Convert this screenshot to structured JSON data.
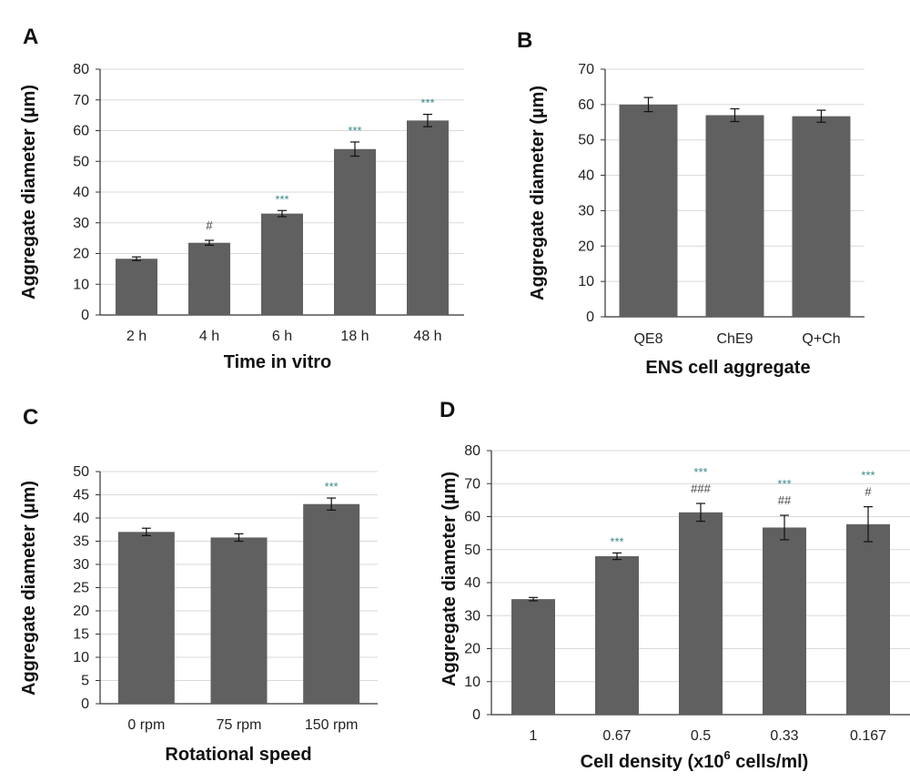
{
  "chart_data": [
    {
      "panel": "A",
      "type": "bar",
      "categories": [
        "2 h",
        "4 h",
        "6 h",
        "18 h",
        "48 h"
      ],
      "values": [
        18.3,
        23.5,
        33.0,
        54.0,
        63.3
      ],
      "errors": [
        0.6,
        0.8,
        1.0,
        2.3,
        2.0
      ],
      "annotations": [
        [],
        [
          "#"
        ],
        [
          "***"
        ],
        [
          "***"
        ],
        [
          "***"
        ]
      ],
      "ylim": [
        0,
        80
      ],
      "yticks": [
        0,
        10,
        20,
        30,
        40,
        50,
        60,
        70,
        80
      ],
      "xlabel": "Time in vitro",
      "ylabel": "Aggregate diameter (µm)",
      "grid": true
    },
    {
      "panel": "B",
      "type": "bar",
      "categories": [
        "QE8",
        "ChE9",
        "Q+Ch"
      ],
      "values": [
        60.0,
        57.0,
        56.7
      ],
      "errors": [
        2.0,
        1.8,
        1.7
      ],
      "annotations": [
        [],
        [],
        []
      ],
      "ylim": [
        0,
        70
      ],
      "yticks": [
        0,
        10,
        20,
        30,
        40,
        50,
        60,
        70
      ],
      "xlabel": "ENS cell aggregate",
      "ylabel": "Aggregate diameter (µm)",
      "grid": true
    },
    {
      "panel": "C",
      "type": "bar",
      "categories": [
        "0 rpm",
        "75 rpm",
        "150 rpm"
      ],
      "values": [
        37.0,
        35.8,
        43.0
      ],
      "errors": [
        0.8,
        0.8,
        1.3
      ],
      "annotations": [
        [],
        [],
        [
          "***"
        ]
      ],
      "ylim": [
        0,
        50
      ],
      "yticks": [
        0,
        5,
        10,
        15,
        20,
        25,
        30,
        35,
        40,
        45,
        50
      ],
      "xlabel": "Rotational speed",
      "ylabel": "Aggregate diameter (µm)",
      "grid": true
    },
    {
      "panel": "D",
      "type": "bar",
      "categories": [
        "1",
        "0.67",
        "0.5",
        "0.33",
        "0.167"
      ],
      "values": [
        35.0,
        48.0,
        61.3,
        56.7,
        57.7
      ],
      "errors": [
        0.5,
        1.0,
        2.7,
        3.7,
        5.3
      ],
      "annotations": [
        [],
        [
          "***"
        ],
        [
          "***",
          "###"
        ],
        [
          "***",
          "##"
        ],
        [
          "***",
          "#"
        ]
      ],
      "ylim": [
        0,
        80
      ],
      "yticks": [
        0,
        10,
        20,
        30,
        40,
        50,
        60,
        70,
        80
      ],
      "xlabel_parts": [
        "Cell density (x10",
        "6",
        " cells/ml)"
      ],
      "ylabel": "Aggregate diameter (µm)",
      "grid": true
    }
  ],
  "style": {
    "bar_color": "#606060",
    "grid_color": "#d9d9d9",
    "axis_color": "#333333",
    "star_color": "#3d8a8a",
    "hash_color": "#444444"
  }
}
